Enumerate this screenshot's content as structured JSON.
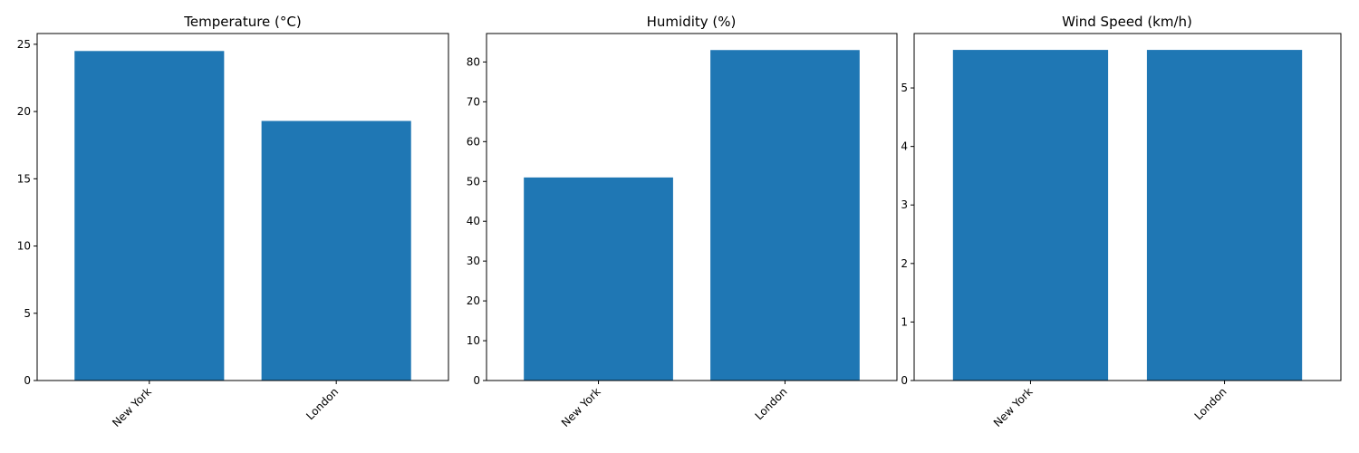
{
  "figure": {
    "background": "#ffffff",
    "bar_color": "#1f77b4"
  },
  "chart_data": [
    {
      "type": "bar",
      "title": "Temperature (°C)",
      "categories": [
        "New York",
        "London"
      ],
      "values": [
        24.5,
        19.3
      ],
      "ylim": [
        0,
        25.8
      ],
      "yticks": [
        0,
        5,
        10,
        15,
        20,
        25
      ],
      "xlabel": "",
      "ylabel": "",
      "grid": false
    },
    {
      "type": "bar",
      "title": "Humidity (%)",
      "categories": [
        "New York",
        "London"
      ],
      "values": [
        51,
        83
      ],
      "ylim": [
        0,
        87.15
      ],
      "yticks": [
        0,
        10,
        20,
        30,
        40,
        50,
        60,
        70,
        80
      ],
      "xlabel": "",
      "ylabel": "",
      "grid": false
    },
    {
      "type": "bar",
      "title": "Wind Speed (km/h)",
      "categories": [
        "New York",
        "London"
      ],
      "values": [
        5.65,
        5.65
      ],
      "ylim": [
        0,
        5.93
      ],
      "yticks": [
        0,
        1,
        2,
        3,
        4,
        5
      ],
      "xlabel": "",
      "ylabel": "",
      "grid": false
    }
  ]
}
